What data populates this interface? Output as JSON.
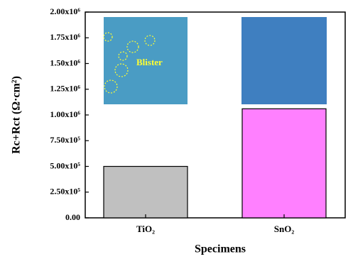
{
  "chart_data": {
    "type": "bar",
    "x_label": "Specimens",
    "y_label": "Rc+Rct (Ω·cm²)",
    "categories": [
      "TiO₂",
      "SnO₂"
    ],
    "values": [
      500000,
      1060000
    ],
    "colors": [
      "#c0c0c0",
      "#ff80ff"
    ],
    "ylim": [
      0,
      2000000
    ],
    "yticks": [
      {
        "value": 0,
        "label": "0.00"
      },
      {
        "value": 250000,
        "label": "2.50x10⁵"
      },
      {
        "value": 500000,
        "label": "5.00x10⁵"
      },
      {
        "value": 750000,
        "label": "7.50x10⁵"
      },
      {
        "value": 1000000,
        "label": "1.00x10⁶"
      },
      {
        "value": 1250000,
        "label": "1.25x10⁶"
      },
      {
        "value": 1500000,
        "label": "1.50x10⁶"
      },
      {
        "value": 1750000,
        "label": "1.75x10⁶"
      },
      {
        "value": 2000000,
        "label": "2.00x10⁶"
      }
    ],
    "annotation": "Blister"
  }
}
